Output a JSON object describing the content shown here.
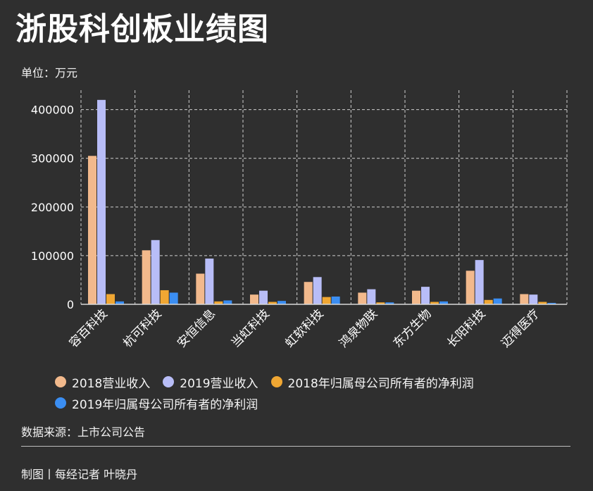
{
  "title": "浙股科创板业绩图",
  "unit": "单位：万元",
  "source": "数据来源：上市公司公告",
  "credit": "制图丨每经记者 叶晓丹",
  "chart_data": {
    "type": "bar",
    "title": "浙股科创板业绩图",
    "ylabel": "单位：万元",
    "xlabel": "",
    "ylim": [
      0,
      440000
    ],
    "yticks": [
      0,
      100000,
      200000,
      300000,
      400000
    ],
    "grid": true,
    "legend_position": "bottom",
    "categories": [
      "容百科技",
      "杭可科技",
      "安恒信息",
      "当虹科技",
      "虹软科技",
      "鸿泉物联",
      "东方生物",
      "长阳科技",
      "迈得医疗"
    ],
    "series": [
      {
        "name": "2018营业收入",
        "color": "#f2b98c",
        "values": [
          305000,
          111000,
          63000,
          20000,
          46000,
          24000,
          28000,
          69000,
          21000
        ]
      },
      {
        "name": "2019营业收入",
        "color": "#b8bdf7",
        "values": [
          420000,
          132000,
          94000,
          28000,
          56000,
          31000,
          36000,
          91000,
          20000
        ]
      },
      {
        "name": "2018年归属母公司所有者的净利润",
        "color": "#f0a733",
        "values": [
          21000,
          29000,
          6000,
          5000,
          15000,
          4000,
          5000,
          9000,
          5000
        ]
      },
      {
        "name": "2019年归属母公司所有者的净利润",
        "color": "#3b8ef2",
        "values": [
          6000,
          24000,
          8000,
          7000,
          16000,
          4000,
          6000,
          12000,
          3000
        ]
      }
    ]
  }
}
